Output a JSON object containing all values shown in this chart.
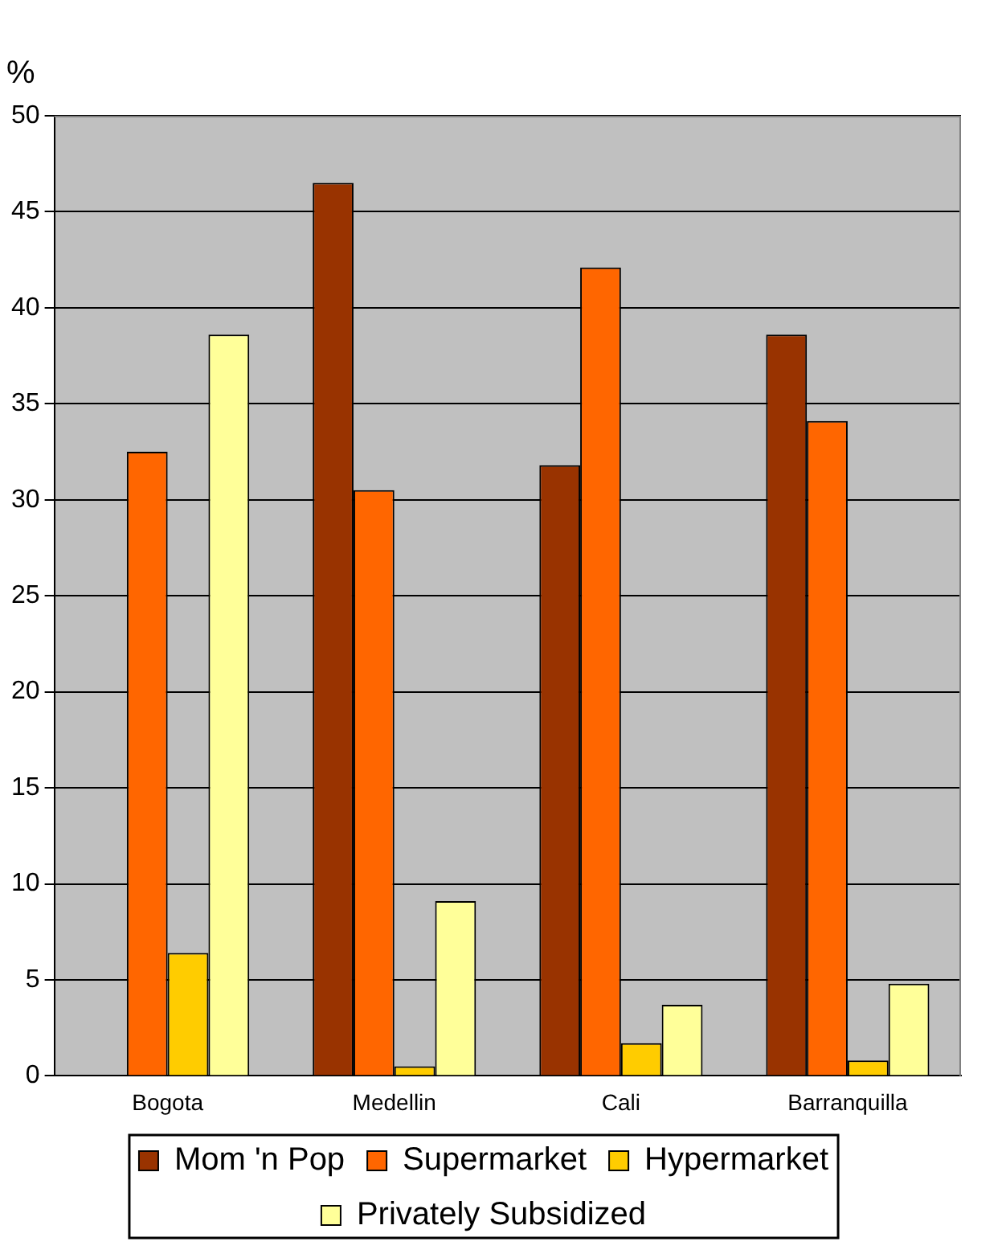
{
  "chart_data": {
    "type": "bar",
    "ylabel": "%",
    "categories": [
      "Bogota",
      "Medellin",
      "Cali",
      "Barranquilla"
    ],
    "series": [
      {
        "name": "Mom 'n Pop",
        "color": "#993300",
        "values": [
          0,
          46.5,
          31.8,
          38.6
        ]
      },
      {
        "name": "Supermarket",
        "color": "#ff6600",
        "values": [
          32.5,
          30.5,
          42.1,
          34.1
        ]
      },
      {
        "name": "Hypermarket",
        "color": "#ffcc00",
        "values": [
          6.4,
          0.5,
          1.7,
          0.8
        ]
      },
      {
        "name": "Privately Subsidized",
        "color": "#ffff99",
        "values": [
          38.6,
          9.1,
          3.7,
          4.8
        ]
      }
    ],
    "ylim": [
      0,
      50
    ],
    "yticks": [
      0,
      5,
      10,
      15,
      20,
      25,
      30,
      35,
      40,
      45,
      50
    ],
    "grid": "y",
    "legend": "bottom"
  }
}
